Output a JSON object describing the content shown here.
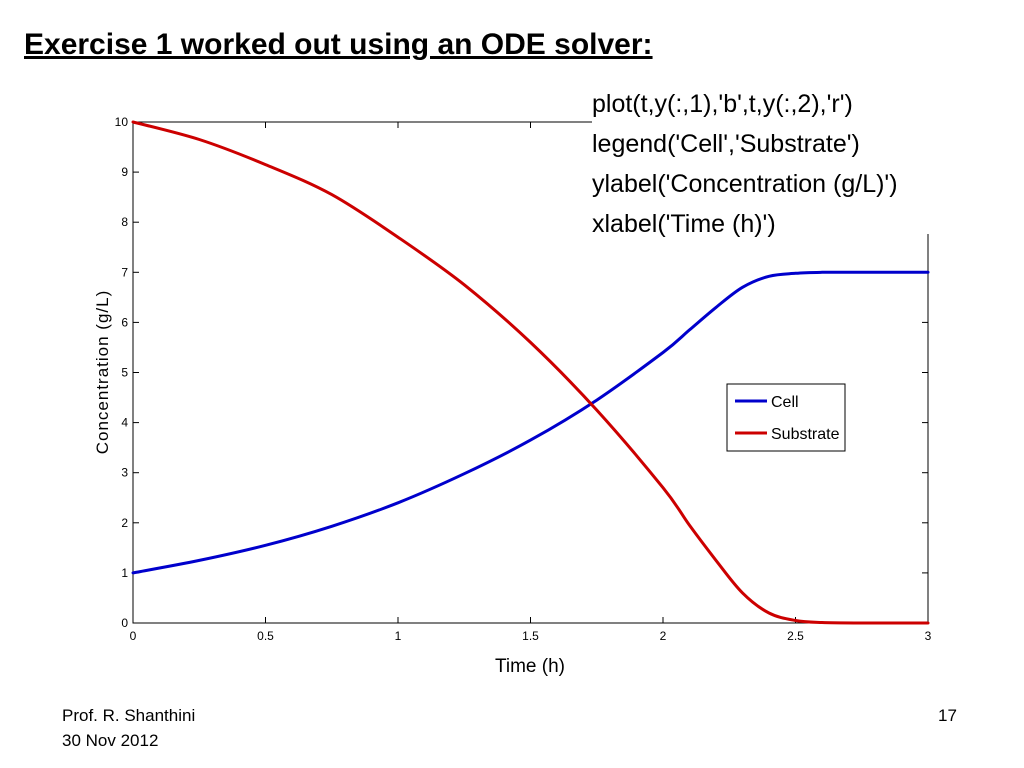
{
  "slide": {
    "title": "Exercise 1 worked out using an ODE solver: ",
    "code_lines": [
      "plot(t,y(:,1),'b',t,y(:,2),'r')",
      "legend('Cell','Substrate')",
      "ylabel('Concentration (g/L)')",
      "xlabel('Time (h)')"
    ],
    "footer": {
      "author": "Prof. R. Shanthini",
      "date": "30 Nov 2012",
      "page": "17"
    }
  },
  "chart_data": {
    "type": "line",
    "xlabel": "Time (h)",
    "ylabel": "Concentration (g/L)",
    "xlim": [
      0,
      3
    ],
    "ylim": [
      0,
      10
    ],
    "xticks": [
      0,
      0.5,
      1,
      1.5,
      2,
      2.5,
      3
    ],
    "xtick_labels": [
      "0",
      "0.5",
      "1",
      "1.5",
      "2",
      "2.5",
      "3"
    ],
    "yticks": [
      0,
      1,
      2,
      3,
      4,
      5,
      6,
      7,
      8,
      9,
      10
    ],
    "ytick_labels": [
      "0",
      "1",
      "2",
      "3",
      "4",
      "5",
      "6",
      "7",
      "8",
      "9",
      "10"
    ],
    "grid": false,
    "legend_placement": "center-right",
    "series": [
      {
        "name": "Cell",
        "color": "#0000cc",
        "x": [
          0,
          0.25,
          0.5,
          0.75,
          1,
          1.25,
          1.5,
          1.75,
          2,
          2.1,
          2.2,
          2.3,
          2.4,
          2.5,
          2.6,
          2.75,
          3
        ],
        "y": [
          1.0,
          1.25,
          1.55,
          1.93,
          2.4,
          2.98,
          3.65,
          4.45,
          5.4,
          5.85,
          6.3,
          6.7,
          6.92,
          6.98,
          7.0,
          7.0,
          7.0
        ]
      },
      {
        "name": "Substrate",
        "color": "#cc0000",
        "x": [
          0,
          0.25,
          0.5,
          0.75,
          1,
          1.25,
          1.5,
          1.75,
          2,
          2.1,
          2.2,
          2.3,
          2.4,
          2.5,
          2.6,
          2.75,
          3
        ],
        "y": [
          10.0,
          9.65,
          9.15,
          8.55,
          7.7,
          6.75,
          5.6,
          4.25,
          2.7,
          1.95,
          1.25,
          0.6,
          0.2,
          0.05,
          0.01,
          0.0,
          0.0
        ]
      }
    ]
  }
}
